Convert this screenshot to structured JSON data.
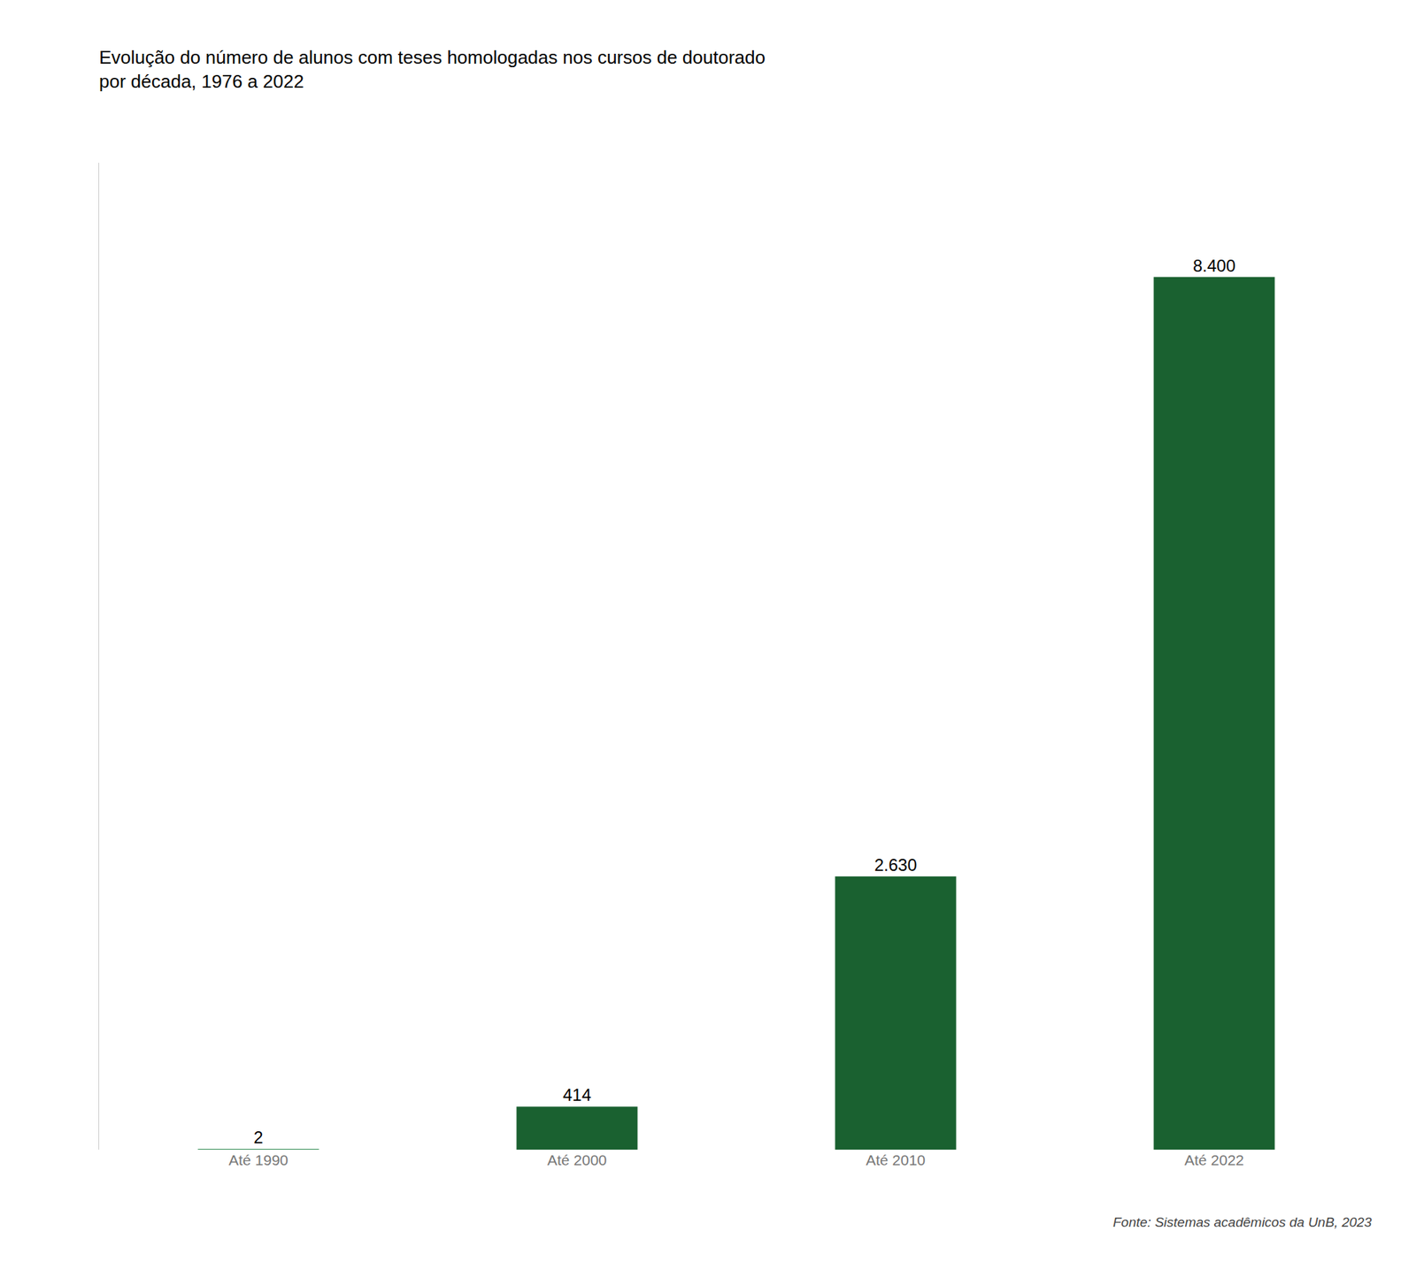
{
  "chart_data": {
    "type": "bar",
    "title": "Evolução do número de alunos com teses homologadas nos cursos de doutorado",
    "subtitle": "por década, 1976 a 2022",
    "annotations": [
      "Fonte: Sistemas acadêmicos da UnB, 2023"
    ],
    "categories": [
      "Até 1990",
      "Até 2000",
      "Até 2010",
      "Até 2022"
    ],
    "values": [
      2,
      414,
      2630,
      8400
    ],
    "value_labels": [
      "2",
      "414",
      "2.630",
      "8.400"
    ],
    "colors": [
      "#2d8a4e",
      "#1a6130",
      "#1a6130",
      "#1a6130"
    ],
    "ylim": [
      0,
      9500
    ],
    "grid": false,
    "data_labels": true,
    "tick_labels": "x"
  }
}
